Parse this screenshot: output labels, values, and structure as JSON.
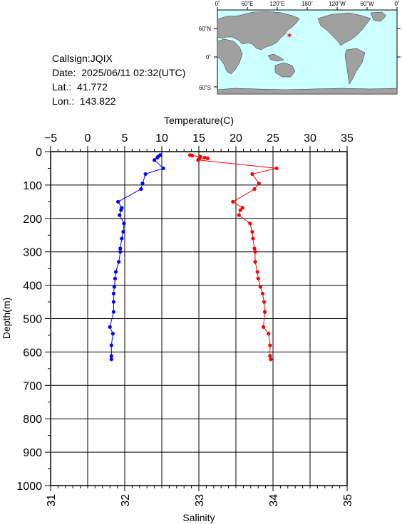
{
  "station": {
    "callsign_label": "Callsign:",
    "callsign": "JQIX",
    "date_label": "Date:",
    "date": "2025/06/11 02:32(UTC)",
    "lat_label": "Lat.:",
    "lat": "41.772",
    "lon_label": "Lon.:",
    "lon": "143.822"
  },
  "map": {
    "lon_ticks": [
      "0˚",
      "60˚E",
      "120˚E",
      "180˚",
      "120˚W",
      "60˚W",
      "0˚"
    ],
    "lat_ticks": [
      "60˚N",
      "0˚",
      "60˚S"
    ],
    "ocean_color": "#ccffff",
    "land_color": "#a0a0a0",
    "marker_color": "#ff0000"
  },
  "chart_data": {
    "type": "line",
    "title": "",
    "ylabel": "Depth(m)",
    "ylim": [
      0,
      1000
    ],
    "yticks": [
      "0",
      "100",
      "200",
      "300",
      "400",
      "500",
      "600",
      "700",
      "800",
      "900",
      "1000"
    ],
    "x_top": {
      "label": "Temperature(C)",
      "lim": [
        -5,
        35
      ],
      "ticks": [
        "−5",
        "0",
        "5",
        "10",
        "15",
        "20",
        "25",
        "30",
        "35"
      ]
    },
    "x_bottom": {
      "label": "Salinity",
      "lim": [
        31,
        35
      ],
      "ticks": [
        "31",
        "32",
        "33",
        "34",
        "35"
      ]
    },
    "grid": true,
    "series": [
      {
        "axis": "temperature",
        "color": "#ff0000",
        "points": [
          [
            13.8,
            10
          ],
          [
            14.1,
            12
          ],
          [
            15.2,
            15
          ],
          [
            15.8,
            18
          ],
          [
            16.2,
            20
          ],
          [
            15.0,
            22
          ],
          [
            14.9,
            25
          ],
          [
            25.5,
            50
          ],
          [
            22.2,
            67
          ],
          [
            23.1,
            95
          ],
          [
            22.5,
            112
          ],
          [
            19.6,
            150
          ],
          [
            20.9,
            168
          ],
          [
            20.6,
            175
          ],
          [
            20.4,
            190
          ],
          [
            21.9,
            215
          ],
          [
            22.2,
            240
          ],
          [
            22.3,
            260
          ],
          [
            22.5,
            290
          ],
          [
            22.6,
            300
          ],
          [
            22.6,
            330
          ],
          [
            22.9,
            360
          ],
          [
            23.0,
            380
          ],
          [
            23.3,
            405
          ],
          [
            23.6,
            425
          ],
          [
            23.8,
            450
          ],
          [
            23.9,
            480
          ],
          [
            23.7,
            525
          ],
          [
            24.4,
            545
          ],
          [
            24.6,
            580
          ],
          [
            24.6,
            612
          ],
          [
            24.7,
            622
          ]
        ]
      },
      {
        "axis": "salinity",
        "color": "#0000ff",
        "points": [
          [
            32.48,
            10
          ],
          [
            32.45,
            15
          ],
          [
            32.44,
            18
          ],
          [
            32.4,
            25
          ],
          [
            32.52,
            50
          ],
          [
            32.28,
            67
          ],
          [
            32.24,
            95
          ],
          [
            32.22,
            112
          ],
          [
            31.91,
            150
          ],
          [
            31.96,
            168
          ],
          [
            31.95,
            175
          ],
          [
            31.93,
            190
          ],
          [
            31.99,
            215
          ],
          [
            31.98,
            240
          ],
          [
            31.96,
            260
          ],
          [
            31.94,
            290
          ],
          [
            31.94,
            300
          ],
          [
            31.92,
            330
          ],
          [
            31.88,
            360
          ],
          [
            31.87,
            380
          ],
          [
            31.86,
            405
          ],
          [
            31.85,
            425
          ],
          [
            31.85,
            450
          ],
          [
            31.85,
            480
          ],
          [
            31.8,
            525
          ],
          [
            31.84,
            545
          ],
          [
            31.82,
            580
          ],
          [
            31.82,
            612
          ],
          [
            31.82,
            622
          ]
        ]
      }
    ]
  }
}
